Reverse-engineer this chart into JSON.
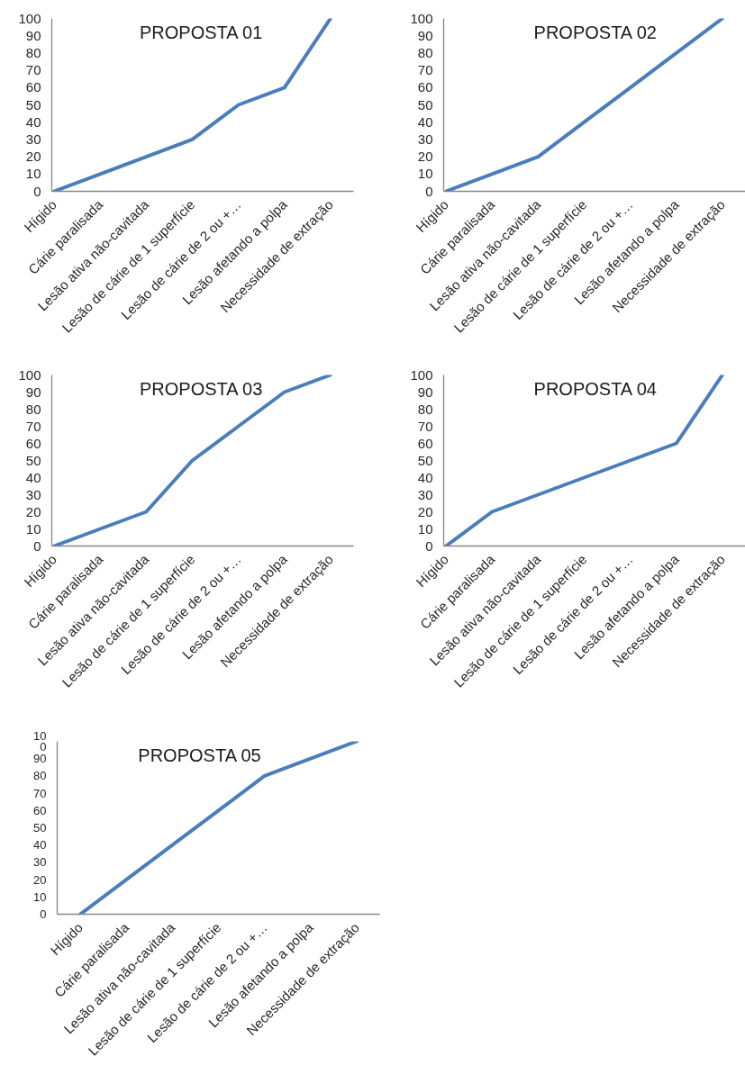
{
  "chart_data": [
    {
      "type": "line",
      "title": "PROPOSTA 01",
      "categories": [
        "Hígido",
        "Cárie paralisada",
        "Lesão ativa não-cavitada",
        "Lesão de cárie de 1 superfície",
        "Lesão de cárie de 2 ou +…",
        "Lesão afetando a polpa",
        "Necessidade de extração"
      ],
      "values": [
        0,
        10,
        20,
        30,
        50,
        60,
        100
      ],
      "color": "#4a7ebb",
      "line_style": "solid",
      "ylim": [
        0,
        100
      ],
      "yticks": [
        0,
        10,
        20,
        30,
        40,
        50,
        60,
        70,
        80,
        90,
        100
      ]
    },
    {
      "type": "line",
      "title": "PROPOSTA 02",
      "categories": [
        "Hígido",
        "Cárie paralisada",
        "Lesão ativa não-cavitada",
        "Lesão de cárie de 1 superfície",
        "Lesão de cárie de 2 ou +…",
        "Lesão afetando a polpa",
        "Necessidade de extração"
      ],
      "values": [
        0,
        10,
        20,
        40,
        60,
        80,
        100
      ],
      "color": "#4a7ebb",
      "line_style": "solid",
      "ylim": [
        0,
        100
      ],
      "yticks": [
        0,
        10,
        20,
        30,
        40,
        50,
        60,
        70,
        80,
        90,
        100
      ]
    },
    {
      "type": "line",
      "title": "PROPOSTA 03",
      "categories": [
        "Hígido",
        "Cárie paralisada",
        "Lesão ativa não-cavitada",
        "Lesão de cárie de 1 superfície",
        "Lesão de cárie de 2 ou +…",
        "Lesão afetando a polpa",
        "Necessidade de extração"
      ],
      "values": [
        0,
        10,
        20,
        50,
        70,
        90,
        100
      ],
      "color": "#4a7ebb",
      "line_style": "solid",
      "ylim": [
        0,
        100
      ],
      "yticks": [
        0,
        10,
        20,
        30,
        40,
        50,
        60,
        70,
        80,
        90,
        100
      ]
    },
    {
      "type": "line",
      "title": "PROPOSTA 04",
      "categories": [
        "Hígido",
        "Cárie paralisada",
        "Lesão ativa não-cavitada",
        "Lesão de cárie de 1 superfície",
        "Lesão de cárie de 2 ou +…",
        "Lesão afetando a polpa",
        "Necessidade de extração"
      ],
      "values": [
        0,
        20,
        30,
        40,
        50,
        60,
        100
      ],
      "color": "#4a7ebb",
      "line_style": "solid",
      "ylim": [
        0,
        100
      ],
      "yticks": [
        0,
        10,
        20,
        30,
        40,
        50,
        60,
        70,
        80,
        90,
        100
      ]
    },
    {
      "type": "line",
      "title": "PROPOSTA 05",
      "categories": [
        "Hígido",
        "Cárie paralisada",
        "Lesão ativa não-cavitada",
        "Lesão de cárie de 1 superfície",
        "Lesão de cárie de 2 ou +…",
        "Lesão afetando a polpa",
        "Necessidade de extração"
      ],
      "values": [
        0,
        20,
        40,
        60,
        80,
        90,
        100
      ],
      "color": "#4a7ebb",
      "line_style": "solid",
      "ylim": [
        0,
        100
      ],
      "yticks": [
        0,
        10,
        20,
        30,
        40,
        50,
        60,
        70,
        80,
        90,
        {
          "value": 100,
          "label": "10\n0"
        }
      ]
    }
  ]
}
